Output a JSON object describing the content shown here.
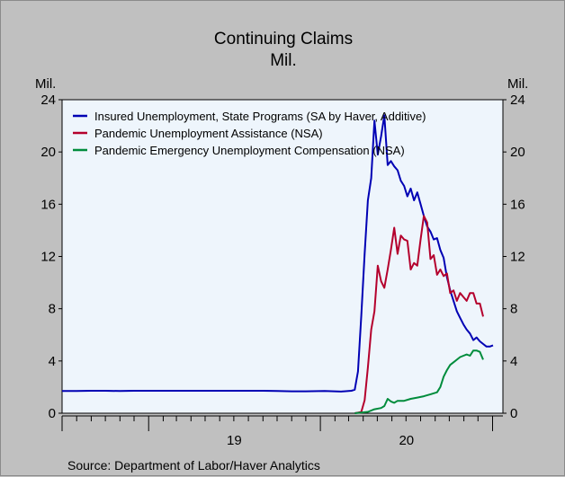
{
  "chart_data": {
    "type": "line",
    "title": "Continuing Claims",
    "subtitle": "Mil.",
    "ylabel_left": "Mil.",
    "ylabel_right": "Mil.",
    "ylim": [
      0,
      24
    ],
    "yticks": [
      "0",
      "4",
      "8",
      "12",
      "16",
      "20",
      "24"
    ],
    "xticks": [
      "19",
      "20"
    ],
    "source": "Source: Department of Labor/Haver Analytics",
    "legend_position": "top-left",
    "grid": false,
    "background": "#eef5fc",
    "series": [
      {
        "name": "Insured Unemployment, State Programs (SA by Haver, Additive)",
        "color": "#0000b4",
        "points": [
          [
            "2018-07-01",
            1.7
          ],
          [
            "2018-08-01",
            1.7
          ],
          [
            "2018-09-01",
            1.72
          ],
          [
            "2018-10-01",
            1.72
          ],
          [
            "2018-11-01",
            1.7
          ],
          [
            "2018-12-01",
            1.72
          ],
          [
            "2019-01-01",
            1.72
          ],
          [
            "2019-02-01",
            1.72
          ],
          [
            "2019-03-01",
            1.72
          ],
          [
            "2019-04-01",
            1.72
          ],
          [
            "2019-05-01",
            1.72
          ],
          [
            "2019-06-01",
            1.72
          ],
          [
            "2019-07-01",
            1.72
          ],
          [
            "2019-08-01",
            1.72
          ],
          [
            "2019-09-01",
            1.72
          ],
          [
            "2019-10-01",
            1.7
          ],
          [
            "2019-11-01",
            1.68
          ],
          [
            "2019-12-01",
            1.68
          ],
          [
            "2020-01-10",
            1.7
          ],
          [
            "2020-02-14",
            1.66
          ],
          [
            "2020-03-07",
            1.72
          ],
          [
            "2020-03-14",
            1.8
          ],
          [
            "2020-03-21",
            3.2
          ],
          [
            "2020-03-28",
            7.5
          ],
          [
            "2020-04-04",
            12.2
          ],
          [
            "2020-04-11",
            16.3
          ],
          [
            "2020-04-18",
            18.0
          ],
          [
            "2020-04-25",
            22.4
          ],
          [
            "2020-05-02",
            19.8
          ],
          [
            "2020-05-09",
            21.2
          ],
          [
            "2020-05-16",
            22.8
          ],
          [
            "2020-05-23",
            19.0
          ],
          [
            "2020-05-30",
            19.3
          ],
          [
            "2020-06-06",
            18.9
          ],
          [
            "2020-06-13",
            18.6
          ],
          [
            "2020-06-20",
            17.8
          ],
          [
            "2020-06-27",
            17.4
          ],
          [
            "2020-07-04",
            16.6
          ],
          [
            "2020-07-11",
            17.2
          ],
          [
            "2020-07-18",
            16.3
          ],
          [
            "2020-07-25",
            16.9
          ],
          [
            "2020-08-01",
            16.0
          ],
          [
            "2020-08-08",
            15.1
          ],
          [
            "2020-08-15",
            14.3
          ],
          [
            "2020-08-22",
            13.9
          ],
          [
            "2020-08-29",
            13.3
          ],
          [
            "2020-09-05",
            13.4
          ],
          [
            "2020-09-12",
            12.5
          ],
          [
            "2020-09-19",
            11.9
          ],
          [
            "2020-09-26",
            10.4
          ],
          [
            "2020-10-03",
            9.4
          ],
          [
            "2020-10-10",
            8.6
          ],
          [
            "2020-10-17",
            7.8
          ],
          [
            "2020-10-24",
            7.3
          ],
          [
            "2020-10-31",
            6.8
          ],
          [
            "2020-11-07",
            6.4
          ],
          [
            "2020-11-14",
            6.1
          ],
          [
            "2020-11-21",
            5.6
          ],
          [
            "2020-11-28",
            5.8
          ],
          [
            "2020-12-05",
            5.5
          ],
          [
            "2020-12-12",
            5.3
          ],
          [
            "2020-12-19",
            5.1
          ],
          [
            "2020-12-26",
            5.1
          ],
          [
            "2021-01-02",
            5.2
          ]
        ]
      },
      {
        "name": "Pandemic Unemployment Assistance (NSA)",
        "color": "#b4002d",
        "points": [
          [
            "2020-03-14",
            0.0
          ],
          [
            "2020-03-21",
            0.05
          ],
          [
            "2020-03-28",
            0.1
          ],
          [
            "2020-04-04",
            1.0
          ],
          [
            "2020-04-11",
            3.5
          ],
          [
            "2020-04-18",
            6.4
          ],
          [
            "2020-04-25",
            7.8
          ],
          [
            "2020-05-02",
            11.3
          ],
          [
            "2020-05-09",
            10.1
          ],
          [
            "2020-05-16",
            9.6
          ],
          [
            "2020-05-23",
            11.0
          ],
          [
            "2020-05-30",
            12.5
          ],
          [
            "2020-06-06",
            14.2
          ],
          [
            "2020-06-13",
            12.2
          ],
          [
            "2020-06-20",
            13.6
          ],
          [
            "2020-06-27",
            13.3
          ],
          [
            "2020-07-04",
            13.2
          ],
          [
            "2020-07-11",
            11.0
          ],
          [
            "2020-07-18",
            11.5
          ],
          [
            "2020-07-25",
            11.3
          ],
          [
            "2020-08-01",
            13.3
          ],
          [
            "2020-08-08",
            15.1
          ],
          [
            "2020-08-15",
            14.6
          ],
          [
            "2020-08-22",
            11.8
          ],
          [
            "2020-08-29",
            12.1
          ],
          [
            "2020-09-05",
            10.6
          ],
          [
            "2020-09-12",
            11.0
          ],
          [
            "2020-09-19",
            10.5
          ],
          [
            "2020-09-26",
            10.7
          ],
          [
            "2020-10-03",
            9.2
          ],
          [
            "2020-10-10",
            9.4
          ],
          [
            "2020-10-17",
            8.6
          ],
          [
            "2020-10-24",
            9.2
          ],
          [
            "2020-10-31",
            8.9
          ],
          [
            "2020-11-07",
            8.6
          ],
          [
            "2020-11-14",
            9.2
          ],
          [
            "2020-11-21",
            9.2
          ],
          [
            "2020-11-28",
            8.4
          ],
          [
            "2020-12-05",
            8.4
          ],
          [
            "2020-12-12",
            7.4
          ]
        ]
      },
      {
        "name": "Pandemic Emergency Unemployment Compensation (NSA)",
        "color": "#008c3c",
        "points": [
          [
            "2020-03-14",
            0.0
          ],
          [
            "2020-03-28",
            0.05
          ],
          [
            "2020-04-11",
            0.1
          ],
          [
            "2020-04-25",
            0.3
          ],
          [
            "2020-05-09",
            0.4
          ],
          [
            "2020-05-16",
            0.55
          ],
          [
            "2020-05-23",
            1.1
          ],
          [
            "2020-05-30",
            0.9
          ],
          [
            "2020-06-06",
            0.8
          ],
          [
            "2020-06-13",
            0.95
          ],
          [
            "2020-06-27",
            0.95
          ],
          [
            "2020-07-11",
            1.1
          ],
          [
            "2020-07-25",
            1.2
          ],
          [
            "2020-08-08",
            1.3
          ],
          [
            "2020-08-22",
            1.45
          ],
          [
            "2020-09-05",
            1.6
          ],
          [
            "2020-09-12",
            2.0
          ],
          [
            "2020-09-19",
            2.8
          ],
          [
            "2020-09-26",
            3.3
          ],
          [
            "2020-10-03",
            3.7
          ],
          [
            "2020-10-10",
            3.9
          ],
          [
            "2020-10-17",
            4.1
          ],
          [
            "2020-10-24",
            4.3
          ],
          [
            "2020-10-31",
            4.4
          ],
          [
            "2020-11-07",
            4.5
          ],
          [
            "2020-11-14",
            4.4
          ],
          [
            "2020-11-21",
            4.8
          ],
          [
            "2020-11-28",
            4.8
          ],
          [
            "2020-12-05",
            4.7
          ],
          [
            "2020-12-12",
            4.1
          ]
        ]
      }
    ]
  }
}
